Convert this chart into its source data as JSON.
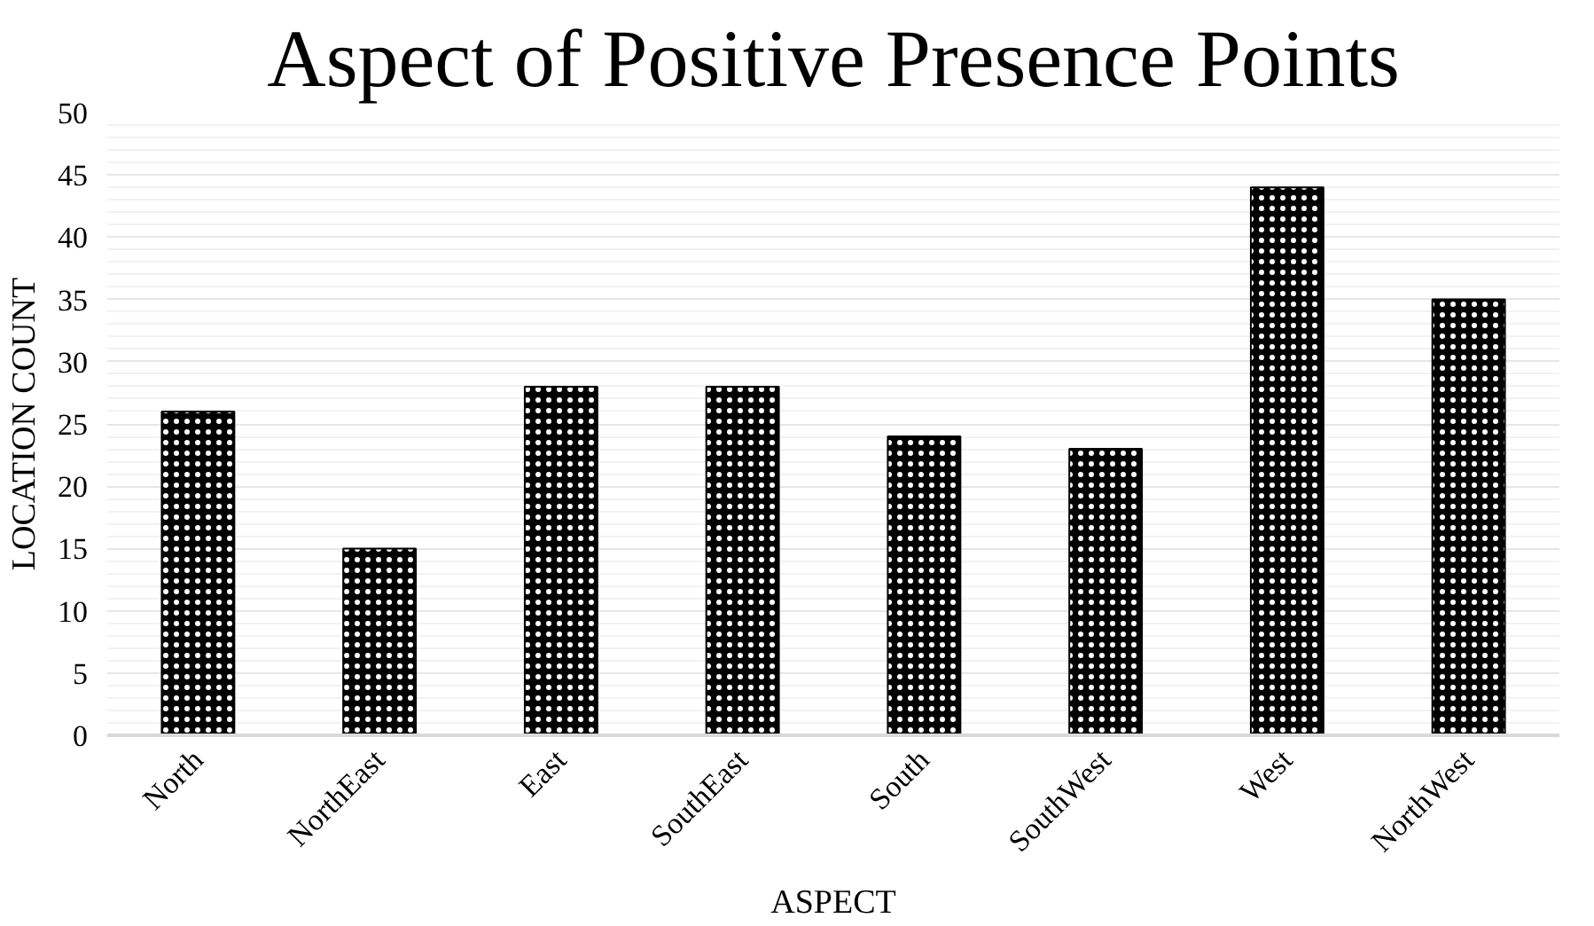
{
  "chart_data": {
    "type": "bar",
    "title": "Aspect of Positive Presence Points",
    "xlabel": "ASPECT",
    "ylabel": "LOCATION COUNT",
    "categories": [
      "North",
      "NorthEast",
      "East",
      "SouthEast",
      "South",
      "SouthWest",
      "West",
      "NorthWest"
    ],
    "values": [
      26,
      15,
      28,
      28,
      24,
      23,
      44,
      35
    ],
    "color": "#000000",
    "ylim": [
      0,
      50
    ],
    "yticks": [
      0,
      5,
      10,
      15,
      20,
      25,
      30,
      35,
      40,
      45,
      50
    ],
    "grid": "y"
  }
}
